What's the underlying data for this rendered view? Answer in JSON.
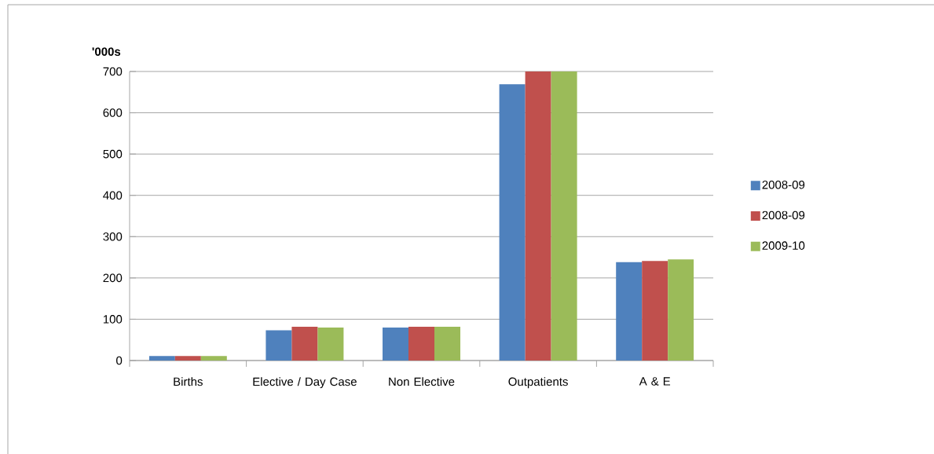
{
  "chart_data": {
    "type": "bar",
    "ylabel": "'000s",
    "categories": [
      "Births",
      "Elective / Day Case",
      "Non Elective",
      "Outpatients",
      "A & E"
    ],
    "series": [
      {
        "name": "2008-09",
        "color": "#4f81bd",
        "values": [
          11,
          73,
          80,
          669,
          238
        ]
      },
      {
        "name": "2008-09",
        "color": "#c0504d",
        "values": [
          11,
          82,
          82,
          700,
          241
        ]
      },
      {
        "name": "2009-10",
        "color": "#9bbb59",
        "values": [
          11,
          80,
          82,
          700,
          245
        ]
      }
    ],
    "ylim": [
      0,
      700
    ],
    "yticks": [
      0,
      100,
      200,
      300,
      400,
      500,
      600,
      700
    ],
    "grid": "y",
    "legend": "right"
  }
}
